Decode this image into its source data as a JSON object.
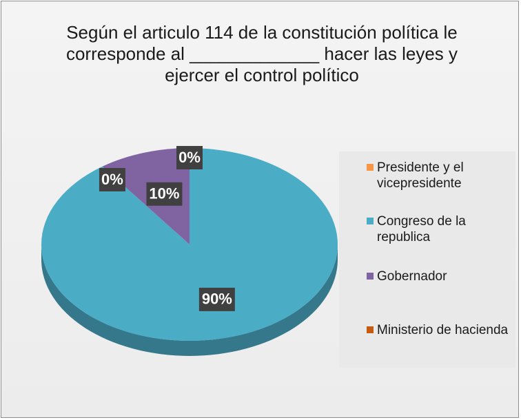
{
  "chart_data": {
    "type": "pie",
    "title": "Según el articulo 114 de la constitución política le corresponde al _____________ hacer las leyes y ejercer el control político",
    "categories": [
      "Presidente y el vicepresidente",
      "Congreso de la republica",
      "Gobernador",
      "Ministerio de hacienda"
    ],
    "values": [
      0,
      90,
      10,
      0
    ],
    "value_labels": [
      "0%",
      "90%",
      "10%",
      "0%"
    ],
    "colors": [
      "#f79646",
      "#4bacc6",
      "#8064a2",
      "#c55a11"
    ],
    "legend": "right"
  }
}
